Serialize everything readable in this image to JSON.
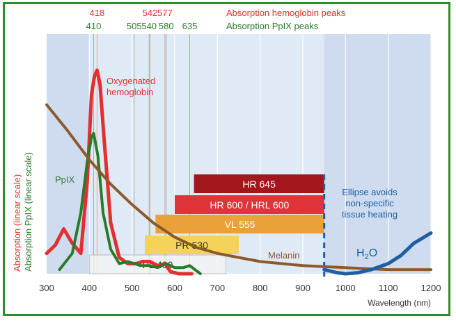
{
  "chart_data": {
    "type": "line",
    "xlabel": "Wavelength (nm)",
    "ylabel_hemoglobin": "Absorption (linear scale)",
    "ylabel_ppix": "Absorption PpIX (linear scale)",
    "xlim": [
      300,
      1200
    ],
    "x_ticks": [
      300,
      400,
      500,
      600,
      700,
      800,
      900,
      1000,
      1100,
      1200
    ],
    "legend": {
      "hemoglobin_peaks_label": "Absorption hemoglobin peaks",
      "ppix_peaks_label": "Absorption PpIX peaks"
    },
    "hemoglobin_peaks": [
      {
        "label": "418",
        "x": 418
      },
      {
        "label": "542",
        "x": 542
      },
      {
        "label": "577",
        "x": 577
      }
    ],
    "ppix_peaks": [
      {
        "label": "410",
        "x": 410
      },
      {
        "label": "505",
        "x": 505
      },
      {
        "label": "540",
        "x": 540
      },
      {
        "label": "580",
        "x": 580
      },
      {
        "label": "635",
        "x": 635
      }
    ],
    "bands": [
      {
        "label": "HR 645",
        "start": 645,
        "end": 950,
        "color": "#a3161b"
      },
      {
        "label": "HR 600 / HRL 600",
        "start": 600,
        "end": 950,
        "color": "#e0343a"
      },
      {
        "label": "VL 555",
        "start": 555,
        "end": 950,
        "color": "#eaa13a"
      },
      {
        "label": "PR 530",
        "start": 530,
        "end": 750,
        "color": "#f5d35a"
      },
      {
        "label": "PL 400",
        "start": 400,
        "end": 720,
        "color": "#f5f5f5"
      }
    ],
    "annotations": {
      "oxy": [
        "Oxygenated",
        "hemoglobin"
      ],
      "ppix": "PpIX",
      "melanin": "Melanin",
      "water_main": "H",
      "water_sub": "2",
      "water_tail": "O",
      "ellipse": [
        "Ellipse avoids",
        "non-specific",
        "tissue heating"
      ]
    },
    "cutoff_x": 950,
    "series": [
      {
        "name": "Oxygenated hemoglobin",
        "color": "#e03030",
        "x": [
          300,
          320,
          340,
          360,
          380,
          395,
          405,
          412,
          418,
          425,
          435,
          450,
          470,
          490,
          510,
          525,
          542,
          560,
          577,
          590,
          610,
          640
        ],
        "y": [
          0.1,
          0.14,
          0.22,
          0.15,
          0.1,
          0.45,
          0.88,
          0.97,
          1.0,
          0.93,
          0.65,
          0.25,
          0.08,
          0.05,
          0.05,
          0.06,
          0.06,
          0.04,
          0.05,
          0.01,
          0.0,
          0.0
        ]
      },
      {
        "name": "PpIX",
        "color": "#2a7a2a",
        "x": [
          330,
          360,
          380,
          395,
          405,
          410,
          420,
          432,
          450,
          470,
          490,
          505,
          520,
          540,
          560,
          580,
          600,
          620,
          635,
          660
        ],
        "y": [
          0.02,
          0.1,
          0.3,
          0.55,
          0.67,
          0.69,
          0.58,
          0.3,
          0.12,
          0.05,
          0.06,
          0.05,
          0.04,
          0.04,
          0.03,
          0.05,
          0.03,
          0.03,
          0.04,
          0.0
        ]
      },
      {
        "name": "Melanin",
        "color": "#8b5a2b",
        "x": [
          300,
          350,
          400,
          450,
          500,
          550,
          600,
          650,
          700,
          750,
          800,
          850,
          900,
          950,
          1000,
          1050,
          1100,
          1150,
          1200
        ],
        "y": [
          0.83,
          0.7,
          0.56,
          0.44,
          0.34,
          0.25,
          0.18,
          0.13,
          0.1,
          0.08,
          0.06,
          0.05,
          0.04,
          0.035,
          0.03,
          0.025,
          0.02,
          0.02,
          0.02
        ]
      },
      {
        "name": "H2O",
        "color": "#1d5fa3",
        "x": [
          950,
          980,
          1000,
          1030,
          1060,
          1100,
          1130,
          1160,
          1200
        ],
        "y": [
          0.02,
          0.005,
          0.0,
          0.005,
          0.02,
          0.05,
          0.09,
          0.15,
          0.2
        ]
      }
    ]
  }
}
